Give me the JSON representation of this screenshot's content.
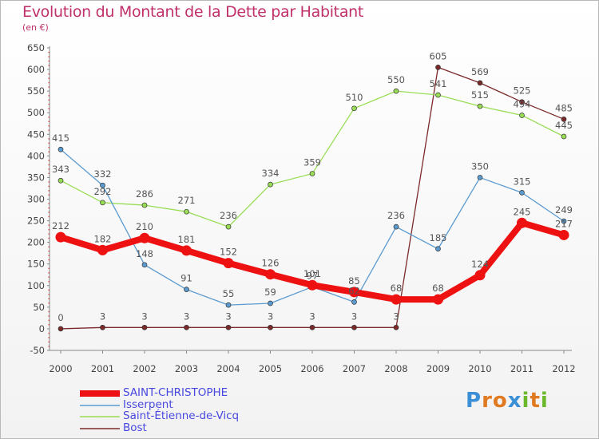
{
  "header": {
    "title": "Evolution du Montant de la Dette par Habitant",
    "subtitle": "(en €)"
  },
  "brand": {
    "letters": [
      "P",
      "r",
      "o",
      "x",
      "i",
      "t",
      "i"
    ],
    "colors": [
      "#3a8fd6",
      "#e07a20",
      "#e07a20",
      "#3a8fd6",
      "#6bb82a",
      "#e07a20",
      "#6bb82a"
    ]
  },
  "chart_data": {
    "type": "line",
    "x": [
      "2000",
      "2001",
      "2002",
      "2003",
      "2004",
      "2005",
      "2006",
      "2007",
      "2008",
      "2009",
      "2010",
      "2011",
      "2012"
    ],
    "ylim": [
      -50,
      650
    ],
    "yticks": [
      "650",
      "600",
      "550",
      "500",
      "450",
      "400",
      "350",
      "300",
      "250",
      "200",
      "150",
      "100",
      "50",
      "0",
      "-50"
    ],
    "grid": false,
    "legend_position": "bottom-left",
    "series": [
      {
        "name": "SAINT-CHRISTOPHE",
        "color": "#ee1111",
        "values": [
          212,
          182,
          210,
          181,
          152,
          126,
          101,
          85,
          68,
          68,
          124,
          245,
          217
        ],
        "labels": [
          "212",
          "182",
          "210",
          "181",
          "152",
          "126",
          "101",
          "85",
          "68",
          "68",
          "124",
          "245",
          "217"
        ]
      },
      {
        "name": "Isserpent",
        "color": "#5b9bd0",
        "values": [
          415,
          332,
          148,
          91,
          55,
          59,
          97,
          62,
          236,
          185,
          350,
          315,
          249
        ],
        "labels": [
          "415",
          "332",
          "148",
          "91",
          "55",
          "59",
          "97",
          "62",
          "236",
          "185",
          "350",
          "315",
          "249"
        ]
      },
      {
        "name": "Saint-Étienne-de-Vicq",
        "color": "#99dd55",
        "values": [
          343,
          292,
          286,
          271,
          236,
          334,
          359,
          510,
          550,
          541,
          515,
          494,
          445
        ],
        "labels": [
          "343",
          "292",
          "286",
          "271",
          "236",
          "334",
          "359",
          "510",
          "550",
          "541",
          "515",
          "494",
          "445"
        ]
      },
      {
        "name": "Bost",
        "color": "#7a2a2a",
        "values": [
          0,
          3,
          3,
          3,
          3,
          3,
          3,
          3,
          3,
          605,
          569,
          525,
          485
        ],
        "labels": [
          "0",
          "3",
          "3",
          "3",
          "3",
          "3",
          "3",
          "3",
          "3",
          "605",
          "569",
          "525",
          "485"
        ]
      }
    ]
  }
}
